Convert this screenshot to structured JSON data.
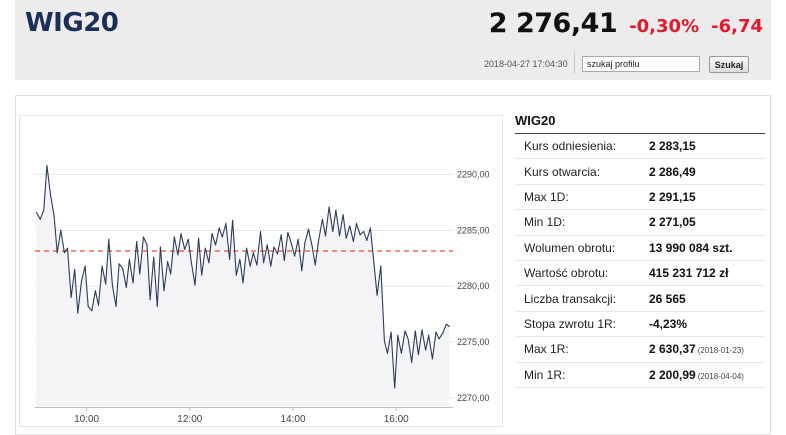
{
  "header": {
    "ticker": "WIG20",
    "price": "2 276,41",
    "change_pct": "-0,30%",
    "change_abs": "-6,74",
    "timestamp": "2018-04-27 17:04:30",
    "search_value": "szukaj profilu",
    "search_button": "Szukaj"
  },
  "info": {
    "title": "WIG20",
    "rows": [
      {
        "label": "Kurs odniesienia:",
        "value": "2 283,15",
        "date": ""
      },
      {
        "label": "Kurs otwarcia:",
        "value": "2 286,49",
        "date": ""
      },
      {
        "label": "Max 1D:",
        "value": "2 291,15",
        "date": ""
      },
      {
        "label": "Min 1D:",
        "value": "2 271,05",
        "date": ""
      },
      {
        "label": "Wolumen obrotu:",
        "value": "13 990 084 szt.",
        "date": ""
      },
      {
        "label": "Wartość obrotu:",
        "value": "415 231 712 zł",
        "date": ""
      },
      {
        "label": "Liczba transakcji:",
        "value": "26 565",
        "date": ""
      },
      {
        "label": "Stopa zwrotu 1R:",
        "value": "-4,23%",
        "date": ""
      },
      {
        "label": "Max 1R:",
        "value": "2 630,37",
        "date": "(2018-01-23)"
      },
      {
        "label": "Min 1R:",
        "value": "2 200,99",
        "date": "(2018-04-04)"
      }
    ]
  },
  "colors": {
    "ticker": "#1d2f58",
    "negative": "#e4192d",
    "line": "#2b3a5c",
    "reference_line": "#e74c3c",
    "area_fill": "#f4f4f6"
  },
  "chart_data": {
    "type": "line",
    "ytick_labels": [
      "2290,00",
      "2285,00",
      "2280,00",
      "2275,00",
      "2270,00"
    ],
    "yticks": [
      2290,
      2285,
      2280,
      2275,
      2270
    ],
    "xtick_labels": [
      "10:00",
      "12:00",
      "14:00",
      "16:00"
    ],
    "xticks": [
      10,
      12,
      14,
      16
    ],
    "xlim": [
      9.0,
      17.1
    ],
    "ylim": [
      2269.2,
      2294.6
    ],
    "reference_value": 2283.15,
    "grid": true,
    "series": [
      {
        "x": [
          9.03,
          9.1,
          9.17,
          9.23,
          9.3,
          9.37,
          9.43,
          9.5,
          9.57,
          9.63,
          9.7,
          9.77,
          9.83,
          9.9,
          9.97,
          10.03,
          10.1,
          10.17,
          10.23,
          10.3,
          10.37,
          10.43,
          10.5,
          10.57,
          10.63,
          10.7,
          10.77,
          10.83,
          10.9,
          10.97,
          11.03,
          11.1,
          11.17,
          11.23,
          11.3,
          11.37,
          11.43,
          11.5,
          11.57,
          11.63,
          11.7,
          11.77,
          11.83,
          11.9,
          11.97,
          12.03,
          12.1,
          12.17,
          12.23,
          12.3,
          12.37,
          12.43,
          12.5,
          12.57,
          12.63,
          12.7,
          12.77,
          12.83,
          12.9,
          12.97,
          13.03,
          13.1,
          13.17,
          13.23,
          13.3,
          13.37,
          13.43,
          13.5,
          13.57,
          13.63,
          13.7,
          13.77,
          13.83,
          13.9,
          13.97,
          14.03,
          14.1,
          14.17,
          14.23,
          14.3,
          14.37,
          14.43,
          14.5,
          14.57,
          14.63,
          14.7,
          14.77,
          14.83,
          14.9,
          14.97,
          15.03,
          15.1,
          15.17,
          15.23,
          15.3,
          15.37,
          15.43,
          15.5,
          15.57,
          15.63,
          15.7,
          15.77,
          15.83,
          15.9,
          15.97,
          16.03,
          16.1,
          16.17,
          16.23,
          16.3,
          16.37,
          16.43,
          16.5,
          16.57,
          16.63,
          16.7,
          16.77,
          16.83,
          16.9,
          16.97,
          17.03
        ],
        "y": [
          2286.6,
          2286.0,
          2286.8,
          2290.8,
          2288.2,
          2286.3,
          2283.0,
          2285.0,
          2283.0,
          2283.4,
          2279.0,
          2281.5,
          2277.6,
          2280.4,
          2281.8,
          2278.2,
          2277.8,
          2279.6,
          2278.3,
          2281.8,
          2280.2,
          2284.2,
          2280.1,
          2278.2,
          2282.0,
          2281.6,
          2279.9,
          2282.4,
          2280.3,
          2284.0,
          2281.1,
          2284.4,
          2283.7,
          2278.8,
          2282.6,
          2278.2,
          2283.5,
          2279.6,
          2282.2,
          2281.1,
          2284.4,
          2282.8,
          2284.7,
          2283.3,
          2284.2,
          2282.1,
          2280.1,
          2284.3,
          2281.0,
          2283.4,
          2282.1,
          2284.7,
          2283.7,
          2285.2,
          2284.4,
          2285.6,
          2282.4,
          2285.9,
          2281.0,
          2282.4,
          2280.3,
          2283.4,
          2281.8,
          2283.0,
          2281.9,
          2284.9,
          2282.1,
          2283.7,
          2281.8,
          2283.5,
          2282.9,
          2284.6,
          2282.3,
          2284.8,
          2283.8,
          2282.7,
          2284.2,
          2281.4,
          2283.9,
          2285.1,
          2283.6,
          2281.9,
          2284.2,
          2286.0,
          2284.5,
          2287.1,
          2284.9,
          2286.8,
          2284.5,
          2286.4,
          2284.3,
          2285.4,
          2284.0,
          2285.6,
          2284.6,
          2284.9,
          2284.1,
          2285.2,
          2282.0,
          2279.2,
          2281.8,
          2275.1,
          2274.0,
          2275.9,
          2270.9,
          2275.6,
          2274.0,
          2276.0,
          2275.3,
          2273.2,
          2276.0,
          2273.9,
          2276.1,
          2274.3,
          2275.6,
          2273.5,
          2275.9,
          2275.3,
          2275.8,
          2276.6,
          2276.4
        ]
      }
    ]
  }
}
